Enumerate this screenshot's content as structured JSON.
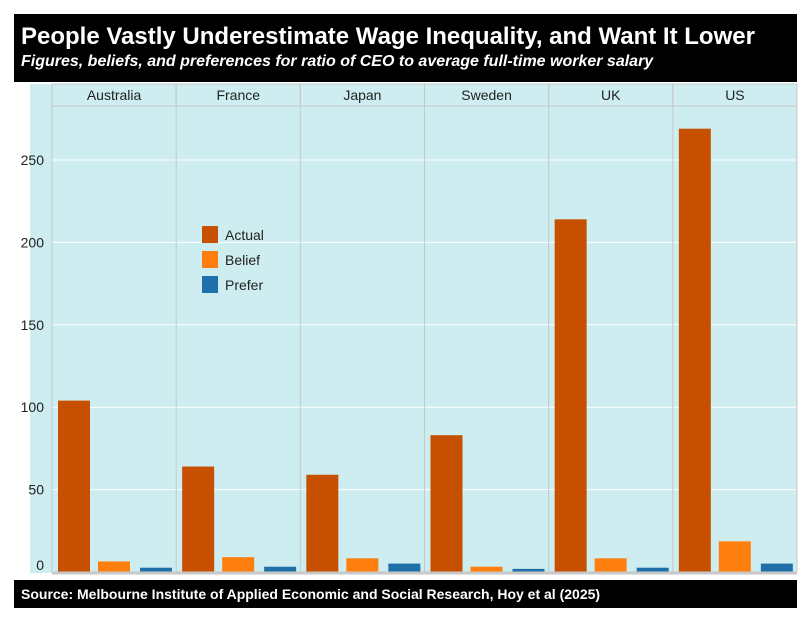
{
  "header": {
    "title": "People Vastly Underestimate Wage Inequality, and Want It Lower",
    "subtitle": "Figures, beliefs, and preferences for ratio of CEO to average full-time worker salary"
  },
  "footer": {
    "source": "Source: Melbourne Institute of Applied Economic and Social Research, Hoy et al (2025)"
  },
  "chart_data": {
    "type": "bar",
    "facets": [
      "Australia",
      "France",
      "Japan",
      "Sweden",
      "UK",
      "US"
    ],
    "series": [
      {
        "name": "Actual",
        "color": "#C75000",
        "values": [
          104,
          64,
          59,
          83,
          214,
          269
        ]
      },
      {
        "name": "Belief",
        "color": "#FF7F0E",
        "values": [
          6.4,
          9,
          8.3,
          3.2,
          8.3,
          18.6
        ]
      },
      {
        "name": "Prefer",
        "color": "#1F6FAA",
        "values": [
          2.6,
          3.2,
          5.1,
          1.9,
          2.6,
          5.1
        ]
      }
    ],
    "yticks": [
      0,
      50,
      100,
      150,
      200,
      250
    ],
    "ylim": [
      0,
      285
    ],
    "grid": true,
    "legend_position": "inside-left",
    "background": "#CDEDF0"
  }
}
